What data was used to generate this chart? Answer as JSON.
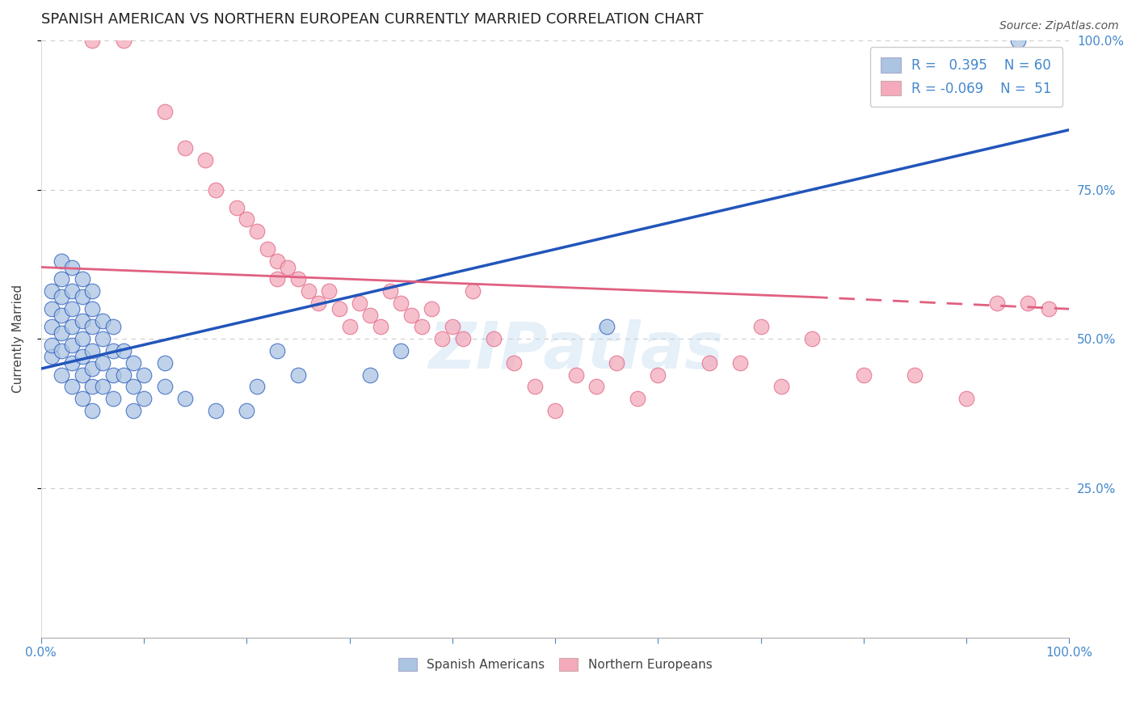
{
  "title": "SPANISH AMERICAN VS NORTHERN EUROPEAN CURRENTLY MARRIED CORRELATION CHART",
  "source": "Source: ZipAtlas.com",
  "ylabel": "Currently Married",
  "blue_r": 0.395,
  "blue_n": 60,
  "pink_r": -0.069,
  "pink_n": 51,
  "blue_color": "#aac4e2",
  "pink_color": "#f4aabb",
  "blue_line_color": "#2255bb",
  "pink_line_color": "#e06080",
  "watermark": "ZIPatlas",
  "blue_scatter": [
    [
      1,
      47
    ],
    [
      1,
      49
    ],
    [
      1,
      52
    ],
    [
      1,
      55
    ],
    [
      1,
      58
    ],
    [
      2,
      44
    ],
    [
      2,
      48
    ],
    [
      2,
      51
    ],
    [
      2,
      54
    ],
    [
      2,
      57
    ],
    [
      2,
      60
    ],
    [
      2,
      63
    ],
    [
      3,
      42
    ],
    [
      3,
      46
    ],
    [
      3,
      49
    ],
    [
      3,
      52
    ],
    [
      3,
      55
    ],
    [
      3,
      58
    ],
    [
      3,
      62
    ],
    [
      4,
      40
    ],
    [
      4,
      44
    ],
    [
      4,
      47
    ],
    [
      4,
      50
    ],
    [
      4,
      53
    ],
    [
      4,
      57
    ],
    [
      4,
      60
    ],
    [
      5,
      38
    ],
    [
      5,
      42
    ],
    [
      5,
      45
    ],
    [
      5,
      48
    ],
    [
      5,
      52
    ],
    [
      5,
      55
    ],
    [
      5,
      58
    ],
    [
      6,
      42
    ],
    [
      6,
      46
    ],
    [
      6,
      50
    ],
    [
      6,
      53
    ],
    [
      7,
      40
    ],
    [
      7,
      44
    ],
    [
      7,
      48
    ],
    [
      7,
      52
    ],
    [
      8,
      44
    ],
    [
      8,
      48
    ],
    [
      9,
      38
    ],
    [
      9,
      42
    ],
    [
      9,
      46
    ],
    [
      10,
      40
    ],
    [
      10,
      44
    ],
    [
      12,
      42
    ],
    [
      12,
      46
    ],
    [
      14,
      40
    ],
    [
      17,
      38
    ],
    [
      20,
      38
    ],
    [
      21,
      42
    ],
    [
      23,
      48
    ],
    [
      25,
      44
    ],
    [
      32,
      44
    ],
    [
      35,
      48
    ],
    [
      55,
      52
    ],
    [
      95,
      100
    ]
  ],
  "pink_scatter": [
    [
      5,
      100
    ],
    [
      8,
      100
    ],
    [
      12,
      88
    ],
    [
      14,
      82
    ],
    [
      16,
      80
    ],
    [
      17,
      75
    ],
    [
      19,
      72
    ],
    [
      20,
      70
    ],
    [
      21,
      68
    ],
    [
      22,
      65
    ],
    [
      23,
      63
    ],
    [
      23,
      60
    ],
    [
      24,
      62
    ],
    [
      25,
      60
    ],
    [
      26,
      58
    ],
    [
      27,
      56
    ],
    [
      28,
      58
    ],
    [
      29,
      55
    ],
    [
      30,
      52
    ],
    [
      31,
      56
    ],
    [
      32,
      54
    ],
    [
      33,
      52
    ],
    [
      34,
      58
    ],
    [
      35,
      56
    ],
    [
      36,
      54
    ],
    [
      37,
      52
    ],
    [
      38,
      55
    ],
    [
      39,
      50
    ],
    [
      40,
      52
    ],
    [
      41,
      50
    ],
    [
      42,
      58
    ],
    [
      44,
      50
    ],
    [
      46,
      46
    ],
    [
      48,
      42
    ],
    [
      50,
      38
    ],
    [
      52,
      44
    ],
    [
      54,
      42
    ],
    [
      56,
      46
    ],
    [
      58,
      40
    ],
    [
      60,
      44
    ],
    [
      65,
      46
    ],
    [
      68,
      46
    ],
    [
      70,
      52
    ],
    [
      72,
      42
    ],
    [
      75,
      50
    ],
    [
      80,
      44
    ],
    [
      85,
      44
    ],
    [
      90,
      40
    ],
    [
      93,
      56
    ],
    [
      96,
      56
    ],
    [
      98,
      55
    ]
  ],
  "blue_line": [
    [
      0,
      45
    ],
    [
      100,
      85
    ]
  ],
  "pink_line_solid": [
    [
      0,
      62
    ],
    [
      75,
      57
    ]
  ],
  "pink_line_dash": [
    [
      75,
      57
    ],
    [
      100,
      55
    ]
  ],
  "xlim": [
    0,
    100
  ],
  "ylim": [
    0,
    100
  ],
  "yticks": [
    25,
    50,
    75,
    100
  ],
  "ytick_labels": [
    "25.0%",
    "50.0%",
    "75.0%",
    "100.0%"
  ],
  "grid_color": "#cccccc",
  "background_color": "#ffffff",
  "title_fontsize": 13,
  "axis_label_color": "#4488cc"
}
